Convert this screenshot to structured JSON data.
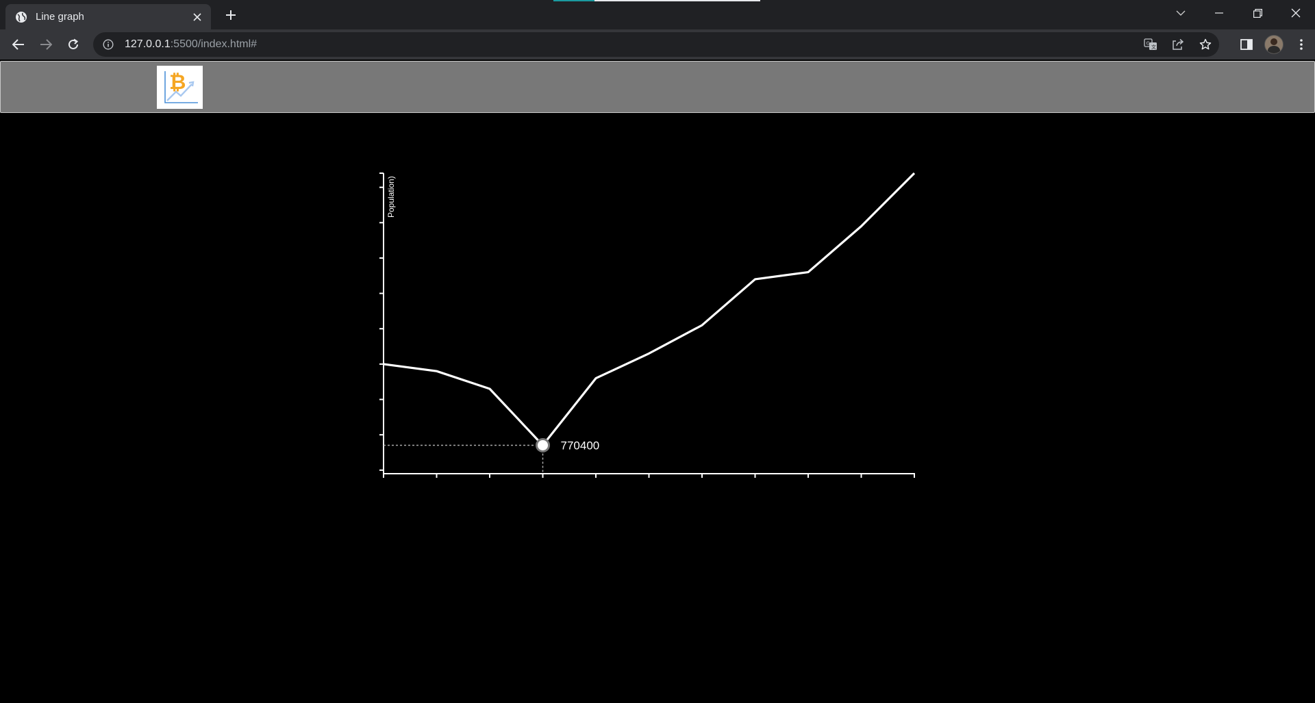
{
  "browser": {
    "tab_title": "Line graph",
    "url_host": "127.0.0.1",
    "url_rest": ":5500/index.html#",
    "accent_colors": [
      "#1a9aa0",
      "#e8eaed"
    ],
    "icons": [
      "globe-icon",
      "close-icon",
      "plus-icon",
      "chevron-down-icon",
      "minimize-icon",
      "restore-icon",
      "back-icon",
      "forward-icon",
      "reload-icon",
      "info-icon",
      "translate-icon",
      "share-icon",
      "star-icon",
      "sidepanel-icon",
      "profile-avatar",
      "more-icon"
    ]
  },
  "page": {
    "header_bg": "#787878",
    "logo": "bitcoin-chart-logo"
  },
  "chart_data": {
    "type": "line",
    "title": "",
    "xlabel": "",
    "ylabel": "Population)",
    "x": [
      0,
      1,
      2,
      3,
      4,
      5,
      6,
      7,
      8,
      9,
      10
    ],
    "values": [
      1000000,
      980000,
      930000,
      770400,
      960000,
      1030000,
      1110000,
      1240000,
      1260000,
      1390000,
      1540000
    ],
    "x_tick_count": 11,
    "y_tick_count": 9,
    "y_ticks": [
      700000,
      800000,
      900000,
      1000000,
      1100000,
      1200000,
      1300000,
      1400000,
      1500000
    ],
    "ylim": [
      690000,
      1540000
    ],
    "grid": false,
    "line_color": "#ffffff",
    "highlight": {
      "index": 3,
      "label": "770400"
    }
  }
}
